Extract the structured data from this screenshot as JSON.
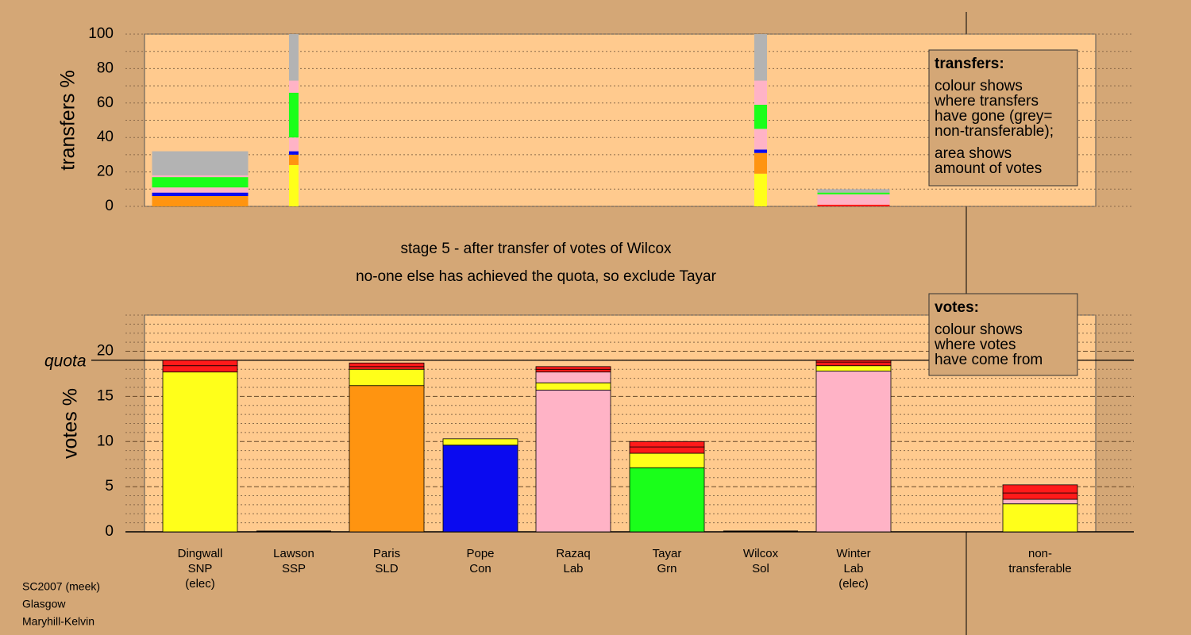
{
  "chart_data": [
    {
      "type": "stacked-bar",
      "ylabel": "transfers %",
      "ylim": [
        0,
        100
      ],
      "yticks": [
        0,
        20,
        40,
        60,
        80,
        100
      ],
      "minor_yticks": [
        10,
        30,
        50,
        70,
        90
      ],
      "series": [
        {
          "color": "#ff1a1a",
          "values": [
            0,
            0,
            null,
            null,
            null,
            null,
            0,
            1,
            null
          ]
        },
        {
          "color": "#ffff1a",
          "values": [
            0,
            24,
            null,
            null,
            null,
            null,
            19,
            0,
            null
          ]
        },
        {
          "color": "#ff9410",
          "values": [
            6,
            6,
            null,
            null,
            null,
            null,
            12,
            0,
            null
          ]
        },
        {
          "color": "#0a0af0",
          "values": [
            2,
            2,
            null,
            null,
            null,
            null,
            2,
            0,
            null
          ]
        },
        {
          "color": "#ffb3c6",
          "values": [
            3,
            8,
            null,
            null,
            null,
            null,
            12,
            6,
            null
          ]
        },
        {
          "color": "#1aff1a",
          "values": [
            6,
            26,
            null,
            null,
            null,
            null,
            14,
            1,
            null
          ]
        },
        {
          "color": "#ffb3c6",
          "values": [
            1,
            7,
            null,
            null,
            null,
            null,
            14,
            0,
            null
          ]
        },
        {
          "color": "#b3b3b3",
          "values": [
            14,
            27,
            null,
            null,
            null,
            null,
            27,
            2,
            null
          ]
        }
      ],
      "legend": {
        "title": "transfers:",
        "lines": [
          "colour shows",
          "where transfers",
          "have gone (grey=",
          "non-transferable);"
        ],
        "lines2": [
          "area shows",
          "amount of votes"
        ]
      }
    },
    {
      "type": "stacked-bar",
      "subtitle": [
        "stage 5 - after transfer of votes of Wilcox",
        "no-one else has achieved the quota, so exclude Tayar"
      ],
      "ylabel": "votes %",
      "ylim": [
        0,
        24
      ],
      "yticks": [
        0,
        5,
        10,
        15,
        20
      ],
      "minor_yticks": [
        1,
        2,
        3,
        4,
        6,
        7,
        8,
        9,
        11,
        12,
        13,
        14,
        16,
        17,
        18,
        19,
        21,
        22,
        23,
        24
      ],
      "quota": 19,
      "quota_label": "quota",
      "categories": [
        [
          "Dingwall",
          "SNP",
          "(elec)"
        ],
        [
          "Lawson",
          "SSP"
        ],
        [
          "Paris",
          "SLD"
        ],
        [
          "Pope",
          "Con"
        ],
        [
          "Razaq",
          "Lab"
        ],
        [
          "Tayar",
          "Grn"
        ],
        [
          "Wilcox",
          "Sol"
        ],
        [
          "Winter",
          "Lab",
          "(elec)"
        ],
        [
          "non-",
          "transferable"
        ]
      ],
      "stacks": [
        [
          {
            "color": "#ffff1a",
            "value": 17.7
          },
          {
            "color": "#ff1a1a",
            "value": 0.7
          },
          {
            "color": "#ff1a1a",
            "value": 0.6
          }
        ],
        [],
        [
          {
            "color": "#ff9410",
            "value": 16.2
          },
          {
            "color": "#ffff1a",
            "value": 1.8
          },
          {
            "color": "#ff1a1a",
            "value": 0.3
          },
          {
            "color": "#ff1a1a",
            "value": 0.4
          }
        ],
        [
          {
            "color": "#0a0af0",
            "value": 9.6
          },
          {
            "color": "#ffff1a",
            "value": 0.7
          }
        ],
        [
          {
            "color": "#ffb3c6",
            "value": 15.7
          },
          {
            "color": "#ffff1a",
            "value": 0.8
          },
          {
            "color": "#ffb3c6",
            "value": 1.2
          },
          {
            "color": "#ff1a1a",
            "value": 0.3
          },
          {
            "color": "#ff1a1a",
            "value": 0.3
          }
        ],
        [
          {
            "color": "#1aff1a",
            "value": 7.1
          },
          {
            "color": "#ffff1a",
            "value": 1.6
          },
          {
            "color": "#ff1a1a",
            "value": 0.7
          },
          {
            "color": "#ff1a1a",
            "value": 0.6
          }
        ],
        [],
        [
          {
            "color": "#ffb3c6",
            "value": 17.8
          },
          {
            "color": "#ffff1a",
            "value": 0.6
          },
          {
            "color": "#ff1a1a",
            "value": 0.4
          },
          {
            "color": "#ff1a1a",
            "value": 0.2
          }
        ],
        [
          {
            "color": "#ffff1a",
            "value": 3.1
          },
          {
            "color": "#ffb3c6",
            "value": 0.5
          },
          {
            "color": "#ff1a1a",
            "value": 0.7
          },
          {
            "color": "#ff1a1a",
            "value": 0.9
          }
        ]
      ],
      "legend": {
        "title": "votes:",
        "lines": [
          "colour shows",
          "where votes",
          "have come from"
        ]
      },
      "footer": [
        "SC2007 (meek)",
        "Glasgow",
        "Maryhill-Kelvin"
      ]
    }
  ]
}
